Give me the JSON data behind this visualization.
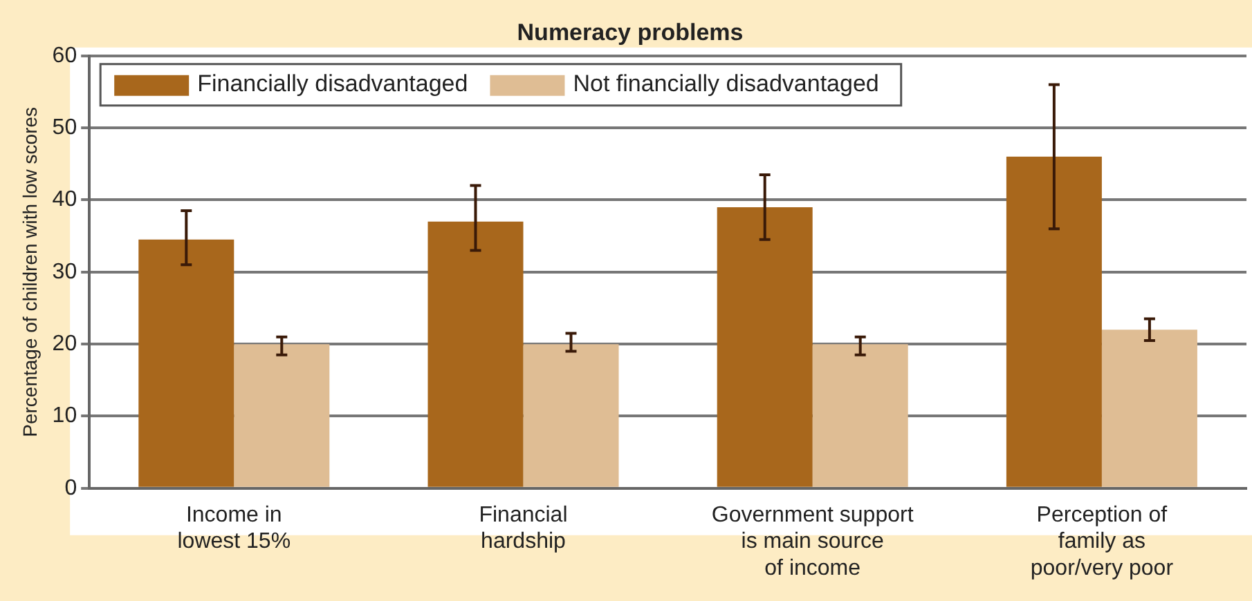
{
  "chart_data": {
    "type": "bar",
    "title": "Numeracy problems",
    "ylabel": "Percentage of children with low scores",
    "categories": [
      "Income in\nlowest 15%",
      "Financial\nhardship",
      "Government support\nis main source\nof income",
      "Perception of\nfamily as\npoor/very poor"
    ],
    "series": [
      {
        "name": "Financially disadvantaged",
        "color": "#a8671c",
        "values": [
          34.5,
          37,
          39,
          46
        ],
        "errors": [
          [
            31,
            38.5
          ],
          [
            33,
            42
          ],
          [
            34.5,
            43.5
          ],
          [
            36,
            56
          ]
        ]
      },
      {
        "name": "Not financially disadvantaged",
        "color": "#dfbd94",
        "values": [
          20,
          20,
          20,
          22
        ],
        "errors": [
          [
            18.5,
            21
          ],
          [
            19,
            21.5
          ],
          [
            18.5,
            21
          ],
          [
            20.5,
            23.5
          ]
        ]
      }
    ],
    "ylim": [
      0,
      60
    ],
    "yticks": [
      0,
      10,
      20,
      30,
      40,
      50,
      60
    ],
    "grid": "y",
    "legend": "top left"
  }
}
